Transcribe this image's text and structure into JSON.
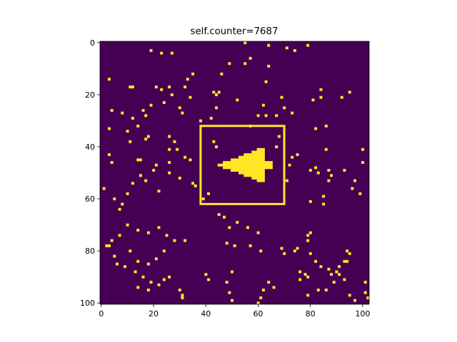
{
  "chart_data": {
    "type": "heatmap",
    "title": "self.counter=7687",
    "x_ticks": [
      "0",
      "20",
      "40",
      "60",
      "80",
      "100"
    ],
    "y_ticks": [
      "0",
      "20",
      "40",
      "60",
      "80",
      "100"
    ],
    "xlim": [
      -0.5,
      102.5
    ],
    "ylim": [
      100.5,
      -0.5
    ],
    "grid": false,
    "colormap": "viridis",
    "colors": {
      "background": "#440154",
      "cell": "#fde725"
    },
    "highlight_box": {
      "x_range": [
        38,
        70
      ],
      "y_range": [
        32,
        62
      ],
      "color": "#fde725"
    },
    "glider_rows": [
      {
        "y": 41,
        "x_from": 60,
        "x_to": 62
      },
      {
        "y": 42,
        "x_from": 58,
        "x_to": 62
      },
      {
        "y": 43,
        "x_from": 55,
        "x_to": 62
      },
      {
        "y": 44,
        "x_from": 53,
        "x_to": 62
      },
      {
        "y": 45,
        "x_from": 50,
        "x_to": 62
      },
      {
        "y": 46,
        "x_from": 47,
        "x_to": 65
      },
      {
        "y": 47,
        "x_from": 45,
        "x_to": 65
      },
      {
        "y": 48,
        "x_from": 47,
        "x_to": 65
      },
      {
        "y": 49,
        "x_from": 50,
        "x_to": 62
      },
      {
        "y": 50,
        "x_from": 53,
        "x_to": 62
      },
      {
        "y": 51,
        "x_from": 55,
        "x_to": 62
      },
      {
        "y": 52,
        "x_from": 58,
        "x_to": 62
      },
      {
        "y": 53,
        "x_from": 60,
        "x_to": 62
      }
    ],
    "scattered_cells": [
      [
        19,
        3
      ],
      [
        23,
        4
      ],
      [
        27,
        4
      ],
      [
        55,
        0
      ],
      [
        64,
        1
      ],
      [
        71,
        2
      ],
      [
        74,
        3
      ],
      [
        79,
        1
      ],
      [
        49,
        8
      ],
      [
        55,
        8
      ],
      [
        57,
        6
      ],
      [
        64,
        9
      ],
      [
        46,
        12
      ],
      [
        3,
        14
      ],
      [
        11,
        17
      ],
      [
        12,
        17
      ],
      [
        21,
        17
      ],
      [
        23,
        18
      ],
      [
        26,
        17
      ],
      [
        32,
        17
      ],
      [
        33,
        14
      ],
      [
        35,
        12
      ],
      [
        43,
        19
      ],
      [
        45,
        19
      ],
      [
        63,
        15
      ],
      [
        69,
        21
      ],
      [
        84,
        18
      ],
      [
        84,
        21
      ],
      [
        92,
        21
      ],
      [
        95,
        19
      ],
      [
        70,
        25
      ],
      [
        81,
        22
      ],
      [
        34,
        21
      ],
      [
        24,
        23
      ],
      [
        16,
        26
      ],
      [
        17,
        28
      ],
      [
        19,
        24
      ],
      [
        12,
        29
      ],
      [
        8,
        27
      ],
      [
        4,
        26
      ],
      [
        3,
        33
      ],
      [
        10,
        34
      ],
      [
        14,
        32
      ],
      [
        18,
        36
      ],
      [
        17,
        37
      ],
      [
        11,
        38
      ],
      [
        26,
        36
      ],
      [
        26,
        41
      ],
      [
        32,
        44
      ],
      [
        3,
        43
      ],
      [
        4,
        46
      ],
      [
        14,
        45
      ],
      [
        15,
        45
      ],
      [
        26,
        46
      ],
      [
        26,
        50
      ],
      [
        63,
        28
      ],
      [
        67,
        28
      ],
      [
        73,
        27
      ],
      [
        73,
        44
      ],
      [
        82,
        48
      ],
      [
        80,
        49
      ],
      [
        83,
        50
      ],
      [
        87,
        49
      ],
      [
        87,
        53
      ],
      [
        88,
        51
      ],
      [
        93,
        49
      ],
      [
        96,
        56
      ],
      [
        97,
        53
      ],
      [
        99,
        58
      ],
      [
        100,
        46
      ],
      [
        100,
        41
      ],
      [
        86,
        41
      ],
      [
        86,
        32
      ],
      [
        82,
        33
      ],
      [
        57,
        32
      ],
      [
        60,
        28
      ],
      [
        62,
        24
      ],
      [
        52,
        22
      ],
      [
        44,
        25
      ],
      [
        42,
        29
      ],
      [
        27,
        20
      ],
      [
        30,
        25
      ],
      [
        31,
        27
      ],
      [
        44,
        20
      ],
      [
        38,
        30
      ],
      [
        22,
        57
      ],
      [
        85,
        59
      ],
      [
        80,
        61
      ],
      [
        85,
        62
      ],
      [
        1,
        56
      ],
      [
        7,
        64
      ],
      [
        45,
        66
      ],
      [
        47,
        67
      ],
      [
        49,
        71
      ],
      [
        52,
        69
      ],
      [
        56,
        71
      ],
      [
        60,
        73
      ],
      [
        48,
        77
      ],
      [
        51,
        78
      ],
      [
        57,
        78
      ],
      [
        61,
        80
      ],
      [
        69,
        79
      ],
      [
        70,
        81
      ],
      [
        75,
        79
      ],
      [
        74,
        80
      ],
      [
        79,
        76
      ],
      [
        80,
        81
      ],
      [
        82,
        84
      ],
      [
        84,
        86
      ],
      [
        87,
        87
      ],
      [
        88,
        89
      ],
      [
        91,
        89
      ],
      [
        93,
        84
      ],
      [
        94,
        84
      ],
      [
        94,
        80
      ],
      [
        95,
        81
      ],
      [
        79,
        74
      ],
      [
        80,
        73
      ],
      [
        76,
        88
      ],
      [
        78,
        89
      ],
      [
        79,
        90
      ],
      [
        76,
        91
      ],
      [
        79,
        97
      ],
      [
        66,
        94
      ],
      [
        64,
        92
      ],
      [
        62,
        95
      ],
      [
        61,
        98
      ],
      [
        60,
        100
      ],
      [
        50,
        99
      ],
      [
        49,
        96
      ],
      [
        48,
        92
      ],
      [
        50,
        88
      ],
      [
        40,
        89
      ],
      [
        41,
        91
      ],
      [
        31,
        98
      ],
      [
        31,
        97
      ],
      [
        30,
        95
      ],
      [
        26,
        90
      ],
      [
        24,
        91
      ],
      [
        22,
        93
      ],
      [
        19,
        92
      ],
      [
        18,
        95
      ],
      [
        14,
        94
      ],
      [
        13,
        88
      ],
      [
        14,
        84
      ],
      [
        11,
        80
      ],
      [
        5,
        82
      ],
      [
        3,
        78
      ],
      [
        2,
        78
      ],
      [
        4,
        76
      ],
      [
        7,
        74
      ],
      [
        10,
        70
      ],
      [
        14,
        72
      ],
      [
        18,
        73
      ],
      [
        22,
        71
      ],
      [
        25,
        74
      ],
      [
        28,
        76
      ],
      [
        32,
        76
      ],
      [
        24,
        80
      ],
      [
        21,
        83
      ],
      [
        18,
        85
      ],
      [
        16,
        90
      ],
      [
        6,
        85
      ],
      [
        9,
        86
      ],
      [
        101,
        92
      ],
      [
        101,
        96
      ],
      [
        102,
        98
      ],
      [
        97,
        99
      ],
      [
        95,
        97
      ],
      [
        93,
        91
      ],
      [
        89,
        92
      ],
      [
        86,
        95
      ],
      [
        83,
        95
      ],
      [
        39,
        60
      ],
      [
        41,
        58
      ],
      [
        36,
        55
      ],
      [
        35,
        54
      ],
      [
        91,
        86
      ],
      [
        90,
        88
      ],
      [
        43,
        38
      ],
      [
        44,
        40
      ],
      [
        68,
        36
      ],
      [
        67,
        40
      ],
      [
        75,
        43
      ],
      [
        72,
        47
      ],
      [
        71,
        53
      ],
      [
        34,
        45
      ],
      [
        30,
        52
      ],
      [
        5,
        60
      ],
      [
        8,
        62
      ],
      [
        10,
        58
      ],
      [
        12,
        54
      ],
      [
        15,
        51
      ],
      [
        17,
        53
      ],
      [
        20,
        49
      ],
      [
        21,
        47
      ],
      [
        29,
        41
      ],
      [
        28,
        38
      ]
    ]
  }
}
